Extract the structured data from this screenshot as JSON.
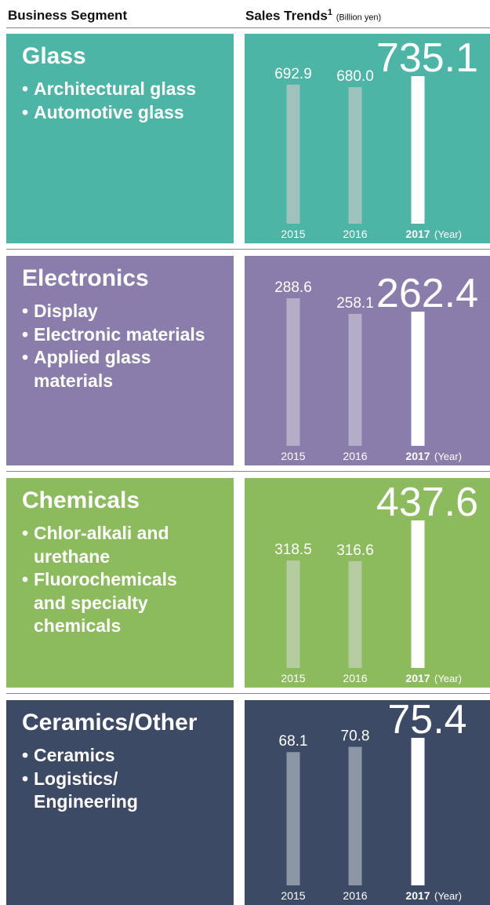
{
  "header": {
    "segment": "Business Segment",
    "sales": "Sales Trends",
    "footnote": "1",
    "unit": "(Billion yen)"
  },
  "chart_data": [
    {
      "type": "bar",
      "title": "Glass",
      "items": [
        [
          "Architectural glass"
        ],
        [
          "Automotive glass"
        ]
      ],
      "categories": [
        "2015",
        "2016",
        "2017"
      ],
      "values": [
        692.9,
        680.0,
        735.1
      ],
      "value_labels": [
        "692.9",
        "680.0",
        "735.1"
      ],
      "xlabel": "(Year)",
      "background": "#4db5a5",
      "color": "#9dc3bc",
      "highlight_color": "#ffffff"
    },
    {
      "type": "bar",
      "title": "Electronics",
      "items": [
        [
          "Display"
        ],
        [
          "Electronic materials"
        ],
        [
          "Applied glass",
          "materials"
        ]
      ],
      "categories": [
        "2015",
        "2016",
        "2017"
      ],
      "values": [
        288.6,
        258.1,
        262.4
      ],
      "xlabel": "(Year)",
      "background": "#8b7dab",
      "color": "#b3adc7",
      "highlight_color": "#ffffff"
    },
    {
      "type": "bar",
      "title": "Chemicals",
      "items": [
        [
          "Chlor-alkali and",
          "urethane"
        ],
        [
          "Fluorochemicals",
          "and specialty",
          "chemicals"
        ]
      ],
      "categories": [
        "2015",
        "2016",
        "2017"
      ],
      "values": [
        318.5,
        316.6,
        437.6
      ],
      "xlabel": "(Year)",
      "background": "#8cbb5e",
      "color": "#b4cca0",
      "highlight_color": "#ffffff"
    },
    {
      "type": "bar",
      "title": "Ceramics/Other",
      "items": [
        [
          "Ceramics"
        ],
        [
          "Logistics/",
          "Engineering"
        ]
      ],
      "categories": [
        "2015",
        "2016",
        "2017"
      ],
      "values": [
        68.1,
        70.8,
        75.4
      ],
      "xlabel": "(Year)",
      "background": "#3d4a66",
      "color": "#8d96a4",
      "highlight_color": "#ffffff"
    }
  ]
}
